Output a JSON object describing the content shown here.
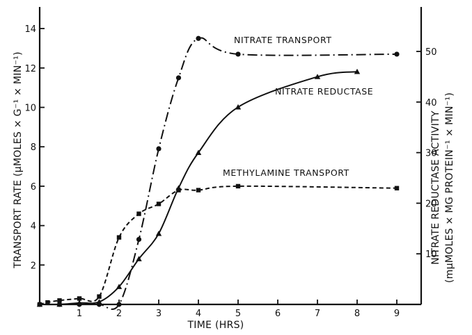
{
  "chart_data": {
    "type": "line",
    "x_label": "TIME (HRS)",
    "y_left_label": "TRANSPORT RATE (μMOLES × G⁻¹ × MIN⁻¹)",
    "y_right_label": "NITRATE REDUCTASE ACTIVITY",
    "y_right_sublabel": "(mμMOLES × MG PROTEIN⁻¹ × MIN⁻¹)",
    "x_ticks": [
      1,
      2,
      3,
      4,
      5,
      6,
      7,
      8,
      9
    ],
    "y_left_ticks": [
      2,
      4,
      6,
      8,
      10,
      12,
      14
    ],
    "y_right_ticks": [
      10,
      20,
      30,
      40,
      50
    ],
    "xlim": [
      0,
      9.5
    ],
    "ylim_left": [
      0,
      15.5
    ],
    "ylim_right": [
      0,
      60
    ],
    "series": [
      {
        "name": "NITRATE TRANSPORT",
        "axis": "left",
        "marker": "circle",
        "line_style": "dash-dot",
        "x": [
          0,
          0.5,
          1,
          1.5,
          2,
          2.5,
          3,
          3.5,
          4,
          5,
          9
        ],
        "y": [
          0,
          0,
          0,
          0,
          0,
          3.3,
          7.9,
          11.5,
          13.5,
          12.7,
          12.7
        ]
      },
      {
        "name": "NITRATE REDUCTASE",
        "axis": "right",
        "marker": "triangle",
        "line_style": "solid",
        "x": [
          0,
          0.5,
          1,
          1.5,
          2,
          2.5,
          3,
          3.5,
          4,
          5,
          7,
          8
        ],
        "y": [
          0,
          0,
          0.3,
          0.5,
          3.5,
          9,
          14,
          23,
          30,
          39,
          45,
          46
        ]
      },
      {
        "name": "METHYLAMINE TRANSPORT",
        "axis": "left",
        "marker": "square",
        "line_style": "dashed",
        "x": [
          0,
          0.2,
          0.5,
          1,
          1.5,
          2,
          2.5,
          3,
          3.5,
          4,
          5,
          9
        ],
        "y": [
          0,
          0.1,
          0.2,
          0.3,
          0.4,
          3.4,
          4.6,
          5.1,
          5.8,
          5.8,
          6.0,
          5.9
        ]
      }
    ]
  }
}
